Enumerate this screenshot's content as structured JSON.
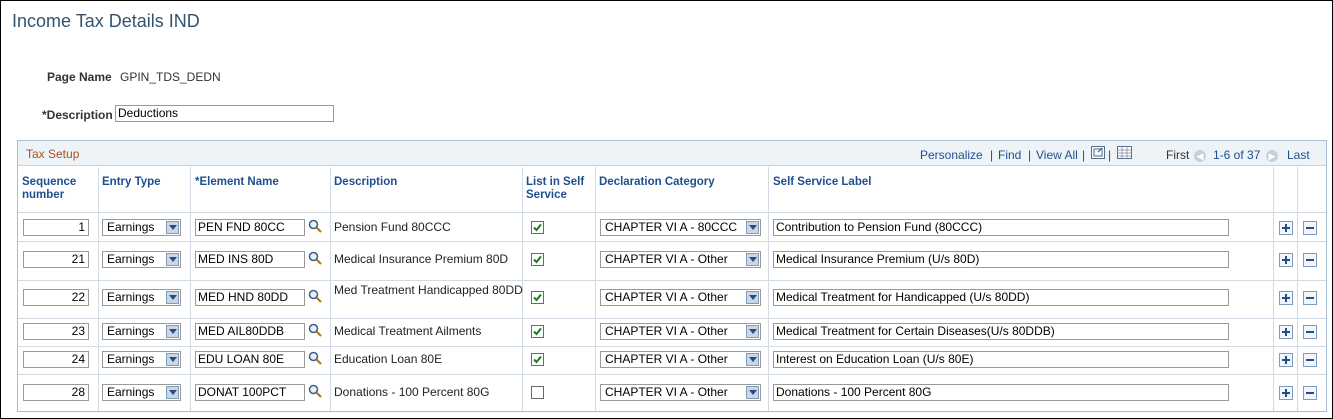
{
  "page": {
    "title": "Income Tax Details IND",
    "page_name_label": "Page Name",
    "page_name_value": "GPIN_TDS_DEDN",
    "description_label": "*Description",
    "description_value": "Deductions"
  },
  "grid": {
    "title": "Tax Setup",
    "nav": {
      "personalize": "Personalize",
      "find": "Find",
      "view_all": "View All",
      "first": "First",
      "range": "1-6 of 37",
      "last": "Last",
      "sep": "|"
    },
    "columns": {
      "sequence": "Sequence number",
      "entry_type": "Entry Type",
      "element_name": "*Element Name",
      "description": "Description",
      "list_in_self_service": "List in Self Service",
      "declaration_category": "Declaration Category",
      "self_service_label": "Self Service Label"
    },
    "rows": [
      {
        "seq": "1",
        "entry_type": "Earnings",
        "element": "PEN FND 80CC",
        "description": "Pension Fund 80CCC",
        "checked": true,
        "category": "CHAPTER VI A - 80CCC",
        "label": "Contribution to Pension Fund (80CCC)"
      },
      {
        "seq": "21",
        "entry_type": "Earnings",
        "element": "MED INS 80D",
        "description": "Medical Insurance Premium 80D",
        "checked": true,
        "category": "CHAPTER VI A - Other",
        "label": "Medical Insurance Premium (U/s 80D)"
      },
      {
        "seq": "22",
        "entry_type": "Earnings",
        "element": "MED HND 80DD",
        "description": "Med Treatment Handicapped 80DD",
        "checked": true,
        "category": "CHAPTER VI A - Other",
        "label": "Medical Treatment for Handicapped (U/s 80DD)"
      },
      {
        "seq": "23",
        "entry_type": "Earnings",
        "element": "MED AIL80DDB",
        "description": "Medical Treatment Ailments",
        "checked": true,
        "category": "CHAPTER VI A - Other",
        "label": "Medical Treatment for Certain Diseases(U/s 80DDB)"
      },
      {
        "seq": "24",
        "entry_type": "Earnings",
        "element": "EDU LOAN 80E",
        "description": "Education Loan 80E",
        "checked": true,
        "category": "CHAPTER VI A - Other",
        "label": "Interest on Education Loan (U/s 80E)"
      },
      {
        "seq": "28",
        "entry_type": "Earnings",
        "element": "DONAT 100PCT",
        "description": "Donations - 100 Percent 80G",
        "checked": false,
        "category": "CHAPTER VI A - Other",
        "label": "Donations - 100 Percent 80G"
      }
    ]
  },
  "colors": {
    "title": "#35536e",
    "link": "#1f4f8f",
    "grid_title": "#a8511e"
  }
}
